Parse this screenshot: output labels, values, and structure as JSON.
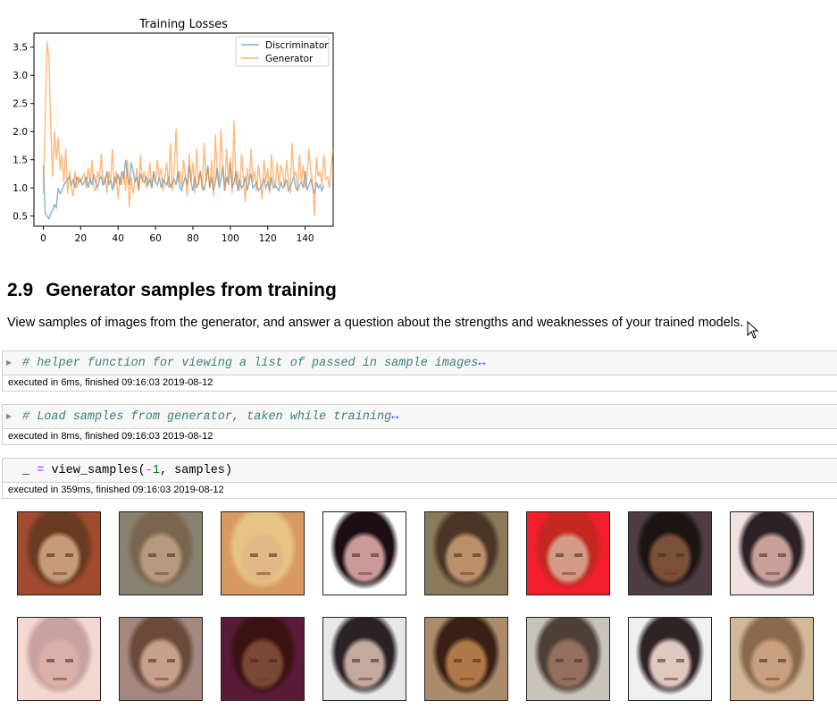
{
  "chart_data": {
    "type": "line",
    "title": "Training Losses",
    "xlabel": "",
    "ylabel": "",
    "xlim": [
      -5,
      155
    ],
    "ylim": [
      0.32,
      3.75
    ],
    "xticks": [
      0,
      20,
      40,
      60,
      80,
      100,
      120,
      140
    ],
    "yticks": [
      0.5,
      1.0,
      1.5,
      2.0,
      2.5,
      3.0,
      3.5
    ],
    "ytick_labels": [
      "0.5",
      "1.0",
      "1.5",
      "2.0",
      "2.5",
      "3.0",
      "3.5"
    ],
    "grid": false,
    "legend": "top-right",
    "series": [
      {
        "name": "Discriminator",
        "color": "#1f77b4",
        "values": [
          1.4,
          0.55,
          0.5,
          0.45,
          0.55,
          0.6,
          0.7,
          0.65,
          1.0,
          0.9,
          0.95,
          1.05,
          1.1,
          1.15,
          1.2,
          1.05,
          1.15,
          1.0,
          1.2,
          1.1,
          1.15,
          1.05,
          1.1,
          1.2,
          1.0,
          1.15,
          1.05,
          1.25,
          1.1,
          1.0,
          1.15,
          1.2,
          1.05,
          1.1,
          1.3,
          1.05,
          1.15,
          0.95,
          1.2,
          1.1,
          1.25,
          1.05,
          1.3,
          1.15,
          1.5,
          1.2,
          1.05,
          1.45,
          1.3,
          1.1,
          1.2,
          0.95,
          1.25,
          1.15,
          1.1,
          1.2,
          1.05,
          1.15,
          1.0,
          1.3,
          1.1,
          1.05,
          1.2,
          1.0,
          1.15,
          1.1,
          1.05,
          1.2,
          1.0,
          1.1,
          1.15,
          1.05,
          1.3,
          1.0,
          0.95,
          1.1,
          1.2,
          1.05,
          1.4,
          1.1,
          0.95,
          1.2,
          1.0,
          1.1,
          1.3,
          1.05,
          0.95,
          1.15,
          1.4,
          1.0,
          1.2,
          0.95,
          1.1,
          1.35,
          1.0,
          1.15,
          1.4,
          0.95,
          1.2,
          1.05,
          1.45,
          1.0,
          1.1,
          1.3,
          0.95,
          1.15,
          1.0,
          1.05,
          1.2,
          0.95,
          1.1,
          1.25,
          1.0,
          1.05,
          1.1,
          0.95,
          1.0,
          1.05,
          1.15,
          1.0,
          1.1,
          0.95,
          1.2,
          1.0,
          1.05,
          1.0,
          0.95,
          1.1,
          1.0,
          1.05,
          1.15,
          0.95,
          1.0,
          1.1,
          1.2,
          1.0,
          0.95,
          1.05,
          1.1,
          1.0,
          1.3,
          0.95,
          1.05,
          1.15,
          1.0,
          0.9,
          1.1,
          1.0,
          1.05,
          0.95,
          1.05
        ]
      },
      {
        "name": "Generator",
        "color": "#ff7f0e",
        "values": [
          0.9,
          2.2,
          3.6,
          3.3,
          2.1,
          1.2,
          2.0,
          1.5,
          1.9,
          1.3,
          1.6,
          1.1,
          1.7,
          0.9,
          1.3,
          1.0,
          0.85,
          1.3,
          1.0,
          1.2,
          1.1,
          1.2,
          1.25,
          1.0,
          1.35,
          1.1,
          1.5,
          1.0,
          0.95,
          1.3,
          1.15,
          1.6,
          1.05,
          1.2,
          0.9,
          1.3,
          1.1,
          1.7,
          1.0,
          1.3,
          0.8,
          1.2,
          1.05,
          1.3,
          0.95,
          1.5,
          0.65,
          1.2,
          0.9,
          1.1,
          1.35,
          0.95,
          1.6,
          1.1,
          1.3,
          1.0,
          1.15,
          1.45,
          1.0,
          1.25,
          1.1,
          1.5,
          1.2,
          1.35,
          0.95,
          1.2,
          1.45,
          1.0,
          1.8,
          0.95,
          1.3,
          2.05,
          1.1,
          1.3,
          1.0,
          1.5,
          1.2,
          0.85,
          1.6,
          1.1,
          1.45,
          0.9,
          1.7,
          1.05,
          1.3,
          0.95,
          1.8,
          1.1,
          1.35,
          1.0,
          1.5,
          0.85,
          1.95,
          1.2,
          1.05,
          2.05,
          1.3,
          0.95,
          1.7,
          1.1,
          1.55,
          0.9,
          2.2,
          1.05,
          1.3,
          0.95,
          1.6,
          1.2,
          0.75,
          1.35,
          1.05,
          1.7,
          1.1,
          1.3,
          0.95,
          1.4,
          1.15,
          0.8,
          1.5,
          1.1,
          1.35,
          0.9,
          1.6,
          1.2,
          1.0,
          1.45,
          1.05,
          1.4,
          1.3,
          1.0,
          1.5,
          1.15,
          0.9,
          1.8,
          1.2,
          1.3,
          0.95,
          1.6,
          1.1,
          1.4,
          1.0,
          1.2,
          1.7,
          1.3,
          1.1,
          0.5,
          1.55,
          1.2,
          1.3,
          1.05,
          1.6,
          1.15,
          1.2,
          1.0,
          1.4,
          1.7
        ]
      }
    ]
  },
  "section": {
    "number": "2.9",
    "title": "Generator samples from training",
    "description": "View samples of images from the generator, and answer a question about the strengths and weaknesses of your trained models."
  },
  "cells": [
    {
      "comment": "# helper function for viewing a list of passed in sample images",
      "fold_icon": "↔",
      "exec": "executed in 6ms, finished 09:16:03 2019-08-12"
    },
    {
      "comment": "# Load samples from generator, taken while training",
      "fold_icon": "↔",
      "exec": "executed in 8ms, finished 09:16:03 2019-08-12"
    },
    {
      "code_var": "_",
      "code_op": "=",
      "code_call": "view_samples(",
      "code_neg": "-1",
      "code_rest": ", samples)",
      "exec": "executed in 359ms, finished 09:16:03 2019-08-12"
    }
  ],
  "icons": {
    "collapse": "collapse-triangle-icon",
    "cursor": "mouse-pointer-icon"
  },
  "faces": [
    {
      "skin": "#c79a7a",
      "hair": "#6a3a22",
      "bg": "#a04a30"
    },
    {
      "skin": "#b69a80",
      "hair": "#7a6650",
      "bg": "#8a8270"
    },
    {
      "skin": "#e0b987",
      "hair": "#e6c483",
      "bg": "#d89a60"
    },
    {
      "skin": "#c99a98",
      "hair": "#1c0e14",
      "bg": "#ffffff"
    },
    {
      "skin": "#ba906a",
      "hair": "#4a3526",
      "bg": "#8a7a5a"
    },
    {
      "skin": "#d39a86",
      "hair": "#c42820",
      "bg": "#f21e2e"
    },
    {
      "skin": "#7a5038",
      "hair": "#1a1412",
      "bg": "#4e3e44"
    },
    {
      "skin": "#c9a099",
      "hair": "#2c2226",
      "bg": "#f0e0e0"
    },
    {
      "skin": "#dab0a8",
      "hair": "#c8a2a0",
      "bg": "#f2d8d0"
    },
    {
      "skin": "#c6a08c",
      "hair": "#6a4a3a",
      "bg": "#a48880"
    },
    {
      "skin": "#7a4834",
      "hair": "#3a1212",
      "bg": "#5a1a3a"
    },
    {
      "skin": "#c4aa9e",
      "hair": "#2a2226",
      "bg": "#e8e8e8"
    },
    {
      "skin": "#b07848",
      "hair": "#3a2014",
      "bg": "#aa8c6c"
    },
    {
      "skin": "#947060",
      "hair": "#4e4036",
      "bg": "#c8c4bc"
    },
    {
      "skin": "#e0c8c0",
      "hair": "#2e2426",
      "bg": "#f0f0f0"
    },
    {
      "skin": "#c8a080",
      "hair": "#8a6a4c",
      "bg": "#d0b898"
    }
  ]
}
